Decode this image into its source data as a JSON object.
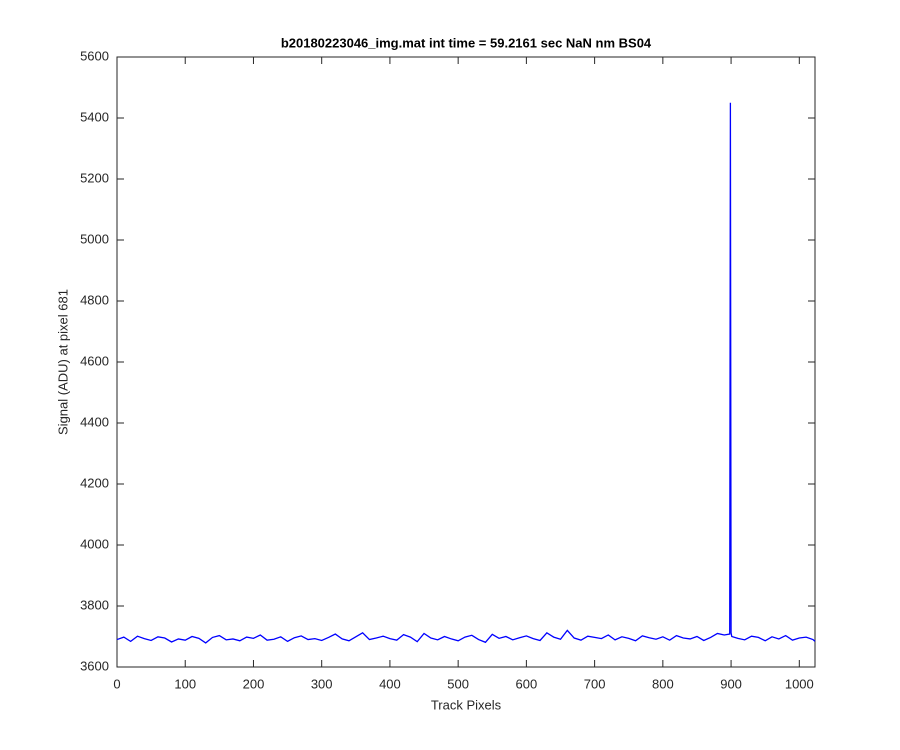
{
  "chart_data": {
    "type": "line",
    "title": "b20180223046_img.mat int time = 59.2161 sec  NaN nm BS04",
    "x_label": "Track Pixels",
    "y_label": "Signal (ADU) at pixel 681",
    "x": [
      0,
      10,
      20,
      30,
      40,
      50,
      60,
      70,
      80,
      90,
      100,
      110,
      120,
      130,
      140,
      150,
      160,
      170,
      180,
      190,
      200,
      210,
      220,
      230,
      240,
      250,
      260,
      270,
      280,
      290,
      300,
      310,
      320,
      330,
      340,
      350,
      360,
      370,
      380,
      390,
      400,
      410,
      420,
      430,
      440,
      450,
      460,
      470,
      480,
      490,
      500,
      510,
      520,
      530,
      540,
      550,
      560,
      570,
      580,
      590,
      600,
      610,
      620,
      630,
      640,
      650,
      660,
      670,
      680,
      690,
      700,
      710,
      720,
      730,
      740,
      750,
      760,
      770,
      780,
      790,
      800,
      810,
      820,
      830,
      840,
      850,
      860,
      870,
      880,
      890,
      898,
      899,
      900,
      901,
      910,
      920,
      930,
      940,
      950,
      960,
      970,
      980,
      990,
      1000,
      1010,
      1020,
      1023
    ],
    "series": [
      {
        "color": "#0000ff",
        "values": [
          3690,
          3698,
          3684,
          3701,
          3693,
          3687,
          3699,
          3695,
          3682,
          3692,
          3688,
          3700,
          3694,
          3679,
          3697,
          3703,
          3689,
          3692,
          3686,
          3698,
          3694,
          3705,
          3688,
          3691,
          3699,
          3684,
          3696,
          3702,
          3690,
          3693,
          3687,
          3697,
          3708,
          3692,
          3686,
          3699,
          3712,
          3690,
          3695,
          3701,
          3693,
          3688,
          3706,
          3698,
          3683,
          3710,
          3695,
          3689,
          3700,
          3692,
          3686,
          3698,
          3704,
          3690,
          3681,
          3707,
          3694,
          3700,
          3689,
          3696,
          3702,
          3693,
          3687,
          3712,
          3698,
          3691,
          3720,
          3695,
          3688,
          3701,
          3697,
          3693,
          3705,
          3689,
          3699,
          3694,
          3686,
          3702,
          3696,
          3691,
          3699,
          3688,
          3703,
          3695,
          3692,
          3700,
          3687,
          3697,
          3710,
          3705,
          3708,
          5450,
          3712,
          3700,
          3694,
          3689,
          3701,
          3697,
          3686,
          3699,
          3692,
          3703,
          3688,
          3695,
          3698,
          3690,
          3684
        ]
      }
    ],
    "xlim": [
      0,
      1023
    ],
    "xticks": [
      0,
      100,
      200,
      300,
      400,
      500,
      600,
      700,
      800,
      900,
      1000
    ],
    "ylim": [
      3600,
      5600
    ],
    "yticks": [
      3600,
      3800,
      4000,
      4200,
      4400,
      4600,
      4800,
      5000,
      5200,
      5400,
      5600
    ],
    "grid": false
  }
}
